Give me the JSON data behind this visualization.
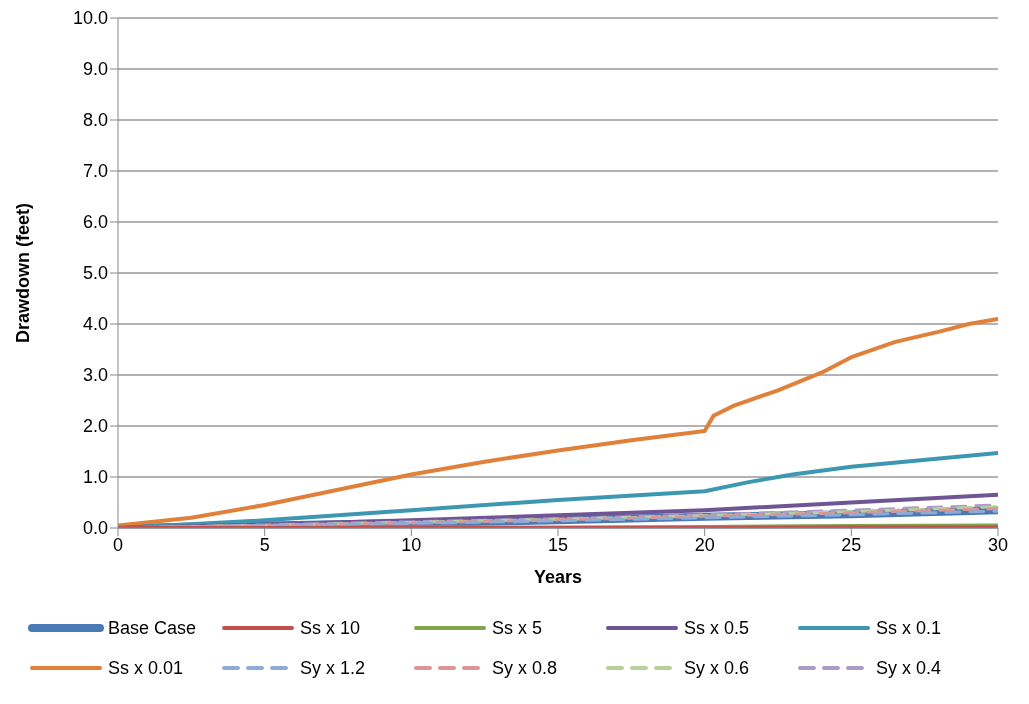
{
  "chart_data": {
    "type": "line",
    "xlabel": "Years",
    "ylabel": "Drawdown (feet)",
    "xlim": [
      0,
      30
    ],
    "xticks": [
      0,
      5,
      10,
      15,
      20,
      25,
      30
    ],
    "ylim": [
      0,
      10
    ],
    "yticks": [
      {
        "value": 0,
        "label": "0.0"
      },
      {
        "value": 1,
        "label": "1.0"
      },
      {
        "value": 2,
        "label": "2.0"
      },
      {
        "value": 3,
        "label": "3.0"
      },
      {
        "value": 4,
        "label": "4.0"
      },
      {
        "value": 5,
        "label": "5.0"
      },
      {
        "value": 6,
        "label": "6.0"
      },
      {
        "value": 7,
        "label": "7.0"
      },
      {
        "value": 8,
        "label": "8.0"
      },
      {
        "value": 9,
        "label": "9.0"
      },
      {
        "value": 10,
        "label": "10.0"
      }
    ],
    "grid": "y",
    "legend": "bottom",
    "marker": "none",
    "x": [
      0,
      5,
      10,
      15,
      20,
      25,
      30
    ],
    "series": [
      {
        "name": "Base Case",
        "color": "#4a7ab5",
        "values": [
          0.0,
          0.05,
          0.1,
          0.15,
          0.22,
          0.27,
          0.35
        ]
      },
      {
        "name": "Ss x 10",
        "color": "#c0504d",
        "values": [
          0.0,
          0.0,
          0.0,
          0.0,
          0.0,
          0.01,
          0.01
        ]
      },
      {
        "name": "Ss x 5",
        "color": "#7fa64a",
        "values": [
          0.0,
          0.0,
          0.01,
          0.01,
          0.02,
          0.04,
          0.05
        ]
      },
      {
        "name": "Ss x 0.5",
        "color": "#6f5596",
        "values": [
          0.0,
          0.07,
          0.15,
          0.25,
          0.35,
          0.5,
          0.65
        ]
      },
      {
        "name": "Ss x 0.1",
        "color": "#3d97b1",
        "x": [
          0,
          5,
          10,
          15,
          20,
          21.5,
          23,
          25,
          30
        ],
        "values": [
          0.0,
          0.15,
          0.35,
          0.55,
          0.72,
          0.9,
          1.05,
          1.2,
          1.47
        ]
      },
      {
        "name": "Ss x 0.01",
        "color": "#e0803a",
        "x": [
          0,
          2.5,
          5,
          7.5,
          10,
          12.5,
          15,
          17.5,
          20,
          20.3,
          21,
          22.5,
          24,
          25,
          26.5,
          28,
          29,
          30
        ],
        "values": [
          0.05,
          0.2,
          0.45,
          0.75,
          1.05,
          1.3,
          1.52,
          1.72,
          1.9,
          2.2,
          2.4,
          2.7,
          3.05,
          3.35,
          3.65,
          3.85,
          4.0,
          4.1
        ]
      },
      {
        "name": "Sy x 1.2",
        "color": "#8eaad6",
        "line_style": "dashed",
        "values": [
          0.0,
          0.05,
          0.09,
          0.14,
          0.2,
          0.26,
          0.33
        ]
      },
      {
        "name": "Sy x 0.8",
        "color": "#d99694",
        "line_style": "dashed",
        "values": [
          0.0,
          0.05,
          0.1,
          0.16,
          0.23,
          0.3,
          0.38
        ]
      },
      {
        "name": "Sy x 0.6",
        "color": "#b9d09a",
        "line_style": "dashed",
        "values": [
          0.0,
          0.05,
          0.11,
          0.17,
          0.24,
          0.32,
          0.42
        ]
      },
      {
        "name": "Sy x 0.4",
        "color": "#aa9cc6",
        "line_style": "dashed",
        "values": [
          0.0,
          0.06,
          0.12,
          0.18,
          0.26,
          0.35,
          0.45
        ]
      }
    ]
  }
}
